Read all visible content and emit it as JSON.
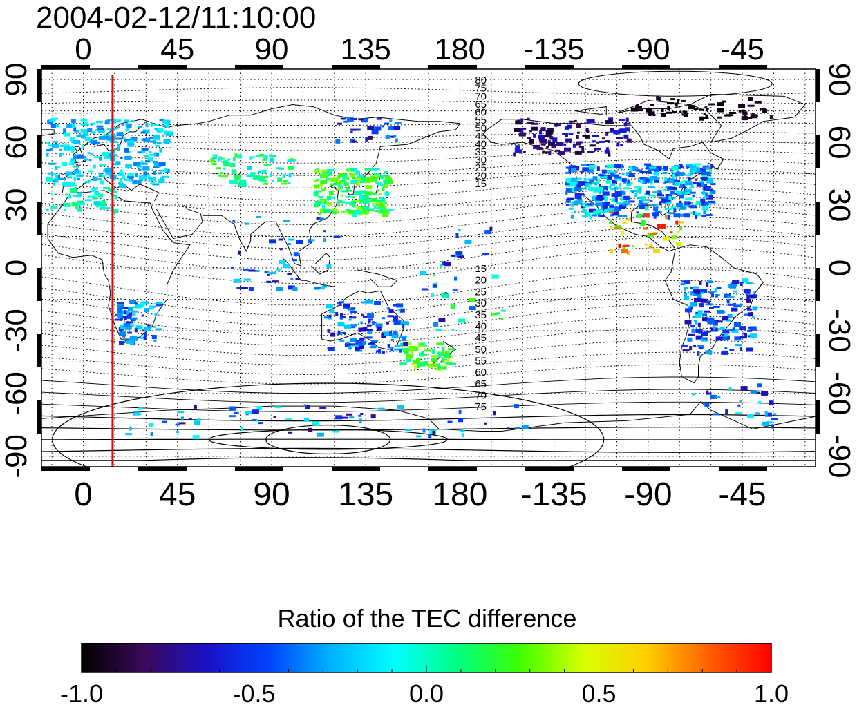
{
  "map": {
    "timestamp": "2004-02-12/11:10:00",
    "top_lon_labels": [
      "0",
      "45",
      "90",
      "135",
      "180",
      "-135",
      "-90",
      "-45"
    ],
    "bottom_lon_labels": [
      "0",
      "45",
      "90",
      "135",
      "180",
      "-135",
      "-90",
      "-45"
    ],
    "lat_labels": [
      "90",
      "60",
      "30",
      "0",
      "-30",
      "-60",
      "-90"
    ],
    "lon_ticks_deg": [
      0,
      45,
      90,
      135,
      180,
      225,
      270,
      315
    ],
    "lat_ticks_deg": [
      90,
      60,
      30,
      0,
      -30,
      -60,
      -90
    ],
    "lon_range_deg": [
      -20,
      350
    ],
    "lat_range_deg": [
      -95,
      95
    ],
    "grid": "dotted, every 15 degrees",
    "marker_line_lon_deg": 14,
    "marker_line_color": "#cc1111",
    "contour_labels_north": [
      "80",
      "75",
      "70",
      "65",
      "60",
      "55",
      "50",
      "45",
      "40",
      "35",
      "30",
      "25",
      "20",
      "15"
    ],
    "contour_labels_south": [
      "15",
      "20",
      "25",
      "30",
      "35",
      "40",
      "45",
      "50",
      "55",
      "60",
      "65",
      "70",
      "75"
    ],
    "contour_label_lon_deg": 190
  },
  "colorbar": {
    "title": "Ratio of the TEC difference",
    "tick_labels": [
      "-1.0",
      "-0.5",
      "0.0",
      "0.5",
      "1.0"
    ],
    "range": [
      -1.0,
      1.0
    ],
    "colors": [
      "#000000",
      "#3a0a5a",
      "#1a10c8",
      "#0044ff",
      "#00b4ff",
      "#00ffff",
      "#00ff80",
      "#40ff00",
      "#d8ff00",
      "#ffd000",
      "#ff6000",
      "#ff0000"
    ]
  }
}
